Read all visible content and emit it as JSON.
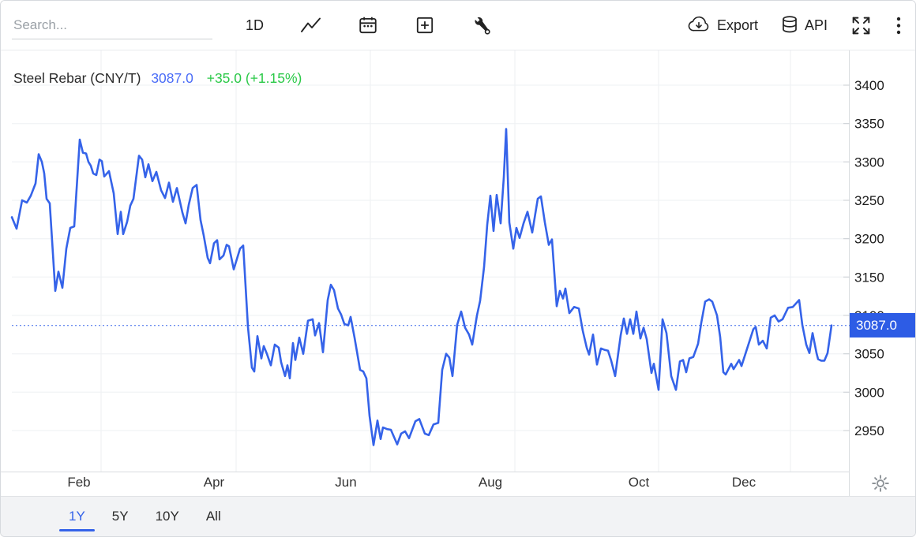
{
  "toolbar": {
    "search_placeholder": "Search...",
    "interval_label": "1D",
    "export_label": "Export",
    "api_label": "API"
  },
  "chart": {
    "title": "Steel Rebar (CNY/T)",
    "last_value": "3087.0",
    "change_text": "+35.0 (+1.15%)",
    "axis_price_label": "3087.0"
  },
  "range_tabs": {
    "items": [
      "1Y",
      "5Y",
      "10Y",
      "All"
    ],
    "active": "1Y"
  },
  "colors": {
    "line": "#3563e9",
    "accent_blue": "#4a6cf7",
    "positive_green": "#2bc948",
    "label_box": "#2d5ce5"
  },
  "chart_data": {
    "type": "line",
    "title": "Steel Rebar (CNY/T)",
    "unit": "CNY/T",
    "current_value": 3087.0,
    "change_abs": 35.0,
    "change_pct": 1.15,
    "x_axis_labels": [
      "Feb",
      "Apr",
      "Jun",
      "Aug",
      "Oct",
      "Dec"
    ],
    "y_ticks": [
      3400,
      3350,
      3300,
      3250,
      3200,
      3150,
      3100,
      3050,
      3000,
      2950
    ],
    "ylim": [
      2905,
      3445
    ],
    "legend": "none",
    "grid": true,
    "series": [
      {
        "name": "Steel Rebar",
        "points": [
          [
            14,
            3228
          ],
          [
            20,
            3213
          ],
          [
            27,
            3250
          ],
          [
            33,
            3247
          ],
          [
            38,
            3256
          ],
          [
            44,
            3272
          ],
          [
            48,
            3310
          ],
          [
            52,
            3300
          ],
          [
            55,
            3285
          ],
          [
            58,
            3252
          ],
          [
            62,
            3246
          ],
          [
            69,
            3132
          ],
          [
            73,
            3157
          ],
          [
            78,
            3136
          ],
          [
            83,
            3187
          ],
          [
            88,
            3214
          ],
          [
            93,
            3216
          ],
          [
            100,
            3329
          ],
          [
            104,
            3312
          ],
          [
            108,
            3311
          ],
          [
            111,
            3300
          ],
          [
            114,
            3295
          ],
          [
            117,
            3285
          ],
          [
            121,
            3283
          ],
          [
            125,
            3303
          ],
          [
            128,
            3301
          ],
          [
            131,
            3281
          ],
          [
            137,
            3288
          ],
          [
            143,
            3259
          ],
          [
            148,
            3206
          ],
          [
            152,
            3235
          ],
          [
            155,
            3206
          ],
          [
            160,
            3222
          ],
          [
            164,
            3243
          ],
          [
            168,
            3252
          ],
          [
            175,
            3308
          ],
          [
            179,
            3303
          ],
          [
            183,
            3280
          ],
          [
            187,
            3297
          ],
          [
            192,
            3275
          ],
          [
            197,
            3287
          ],
          [
            203,
            3263
          ],
          [
            208,
            3253
          ],
          [
            213,
            3273
          ],
          [
            218,
            3248
          ],
          [
            223,
            3266
          ],
          [
            230,
            3234
          ],
          [
            234,
            3220
          ],
          [
            238,
            3244
          ],
          [
            243,
            3266
          ],
          [
            248,
            3270
          ],
          [
            253,
            3224
          ],
          [
            257,
            3204
          ],
          [
            262,
            3175
          ],
          [
            265,
            3168
          ],
          [
            270,
            3194
          ],
          [
            274,
            3198
          ],
          [
            277,
            3173
          ],
          [
            282,
            3178
          ],
          [
            286,
            3192
          ],
          [
            289,
            3190
          ],
          [
            295,
            3160
          ],
          [
            303,
            3187
          ],
          [
            307,
            3191
          ],
          [
            313,
            3085
          ],
          [
            318,
            3032
          ],
          [
            321,
            3027
          ],
          [
            325,
            3073
          ],
          [
            330,
            3044
          ],
          [
            333,
            3060
          ],
          [
            337,
            3050
          ],
          [
            342,
            3035
          ],
          [
            347,
            3062
          ],
          [
            352,
            3058
          ],
          [
            355,
            3039
          ],
          [
            360,
            3021
          ],
          [
            363,
            3035
          ],
          [
            366,
            3018
          ],
          [
            370,
            3064
          ],
          [
            373,
            3042
          ],
          [
            378,
            3071
          ],
          [
            383,
            3050
          ],
          [
            389,
            3093
          ],
          [
            395,
            3095
          ],
          [
            398,
            3074
          ],
          [
            403,
            3090
          ],
          [
            408,
            3052
          ],
          [
            414,
            3120
          ],
          [
            418,
            3140
          ],
          [
            422,
            3133
          ],
          [
            427,
            3109
          ],
          [
            431,
            3101
          ],
          [
            435,
            3089
          ],
          [
            440,
            3087
          ],
          [
            443,
            3098
          ],
          [
            448,
            3071
          ],
          [
            455,
            3029
          ],
          [
            459,
            3027
          ],
          [
            463,
            3018
          ],
          [
            467,
            2969
          ],
          [
            472,
            2931
          ],
          [
            477,
            2963
          ],
          [
            481,
            2939
          ],
          [
            484,
            2954
          ],
          [
            489,
            2952
          ],
          [
            494,
            2951
          ],
          [
            502,
            2932
          ],
          [
            507,
            2946
          ],
          [
            512,
            2949
          ],
          [
            517,
            2940
          ],
          [
            525,
            2962
          ],
          [
            530,
            2965
          ],
          [
            537,
            2946
          ],
          [
            542,
            2944
          ],
          [
            548,
            2958
          ],
          [
            554,
            2960
          ],
          [
            559,
            3029
          ],
          [
            564,
            3050
          ],
          [
            568,
            3045
          ],
          [
            572,
            3021
          ],
          [
            578,
            3088
          ],
          [
            583,
            3105
          ],
          [
            588,
            3084
          ],
          [
            593,
            3075
          ],
          [
            597,
            3062
          ],
          [
            603,
            3100
          ],
          [
            607,
            3119
          ],
          [
            612,
            3163
          ],
          [
            616,
            3218
          ],
          [
            620,
            3256
          ],
          [
            624,
            3210
          ],
          [
            628,
            3257
          ],
          [
            633,
            3220
          ],
          [
            637,
            3280
          ],
          [
            640,
            3343
          ],
          [
            644,
            3221
          ],
          [
            649,
            3187
          ],
          [
            653,
            3214
          ],
          [
            657,
            3201
          ],
          [
            662,
            3220
          ],
          [
            667,
            3235
          ],
          [
            673,
            3208
          ],
          [
            680,
            3252
          ],
          [
            684,
            3255
          ],
          [
            689,
            3221
          ],
          [
            694,
            3192
          ],
          [
            698,
            3199
          ],
          [
            704,
            3112
          ],
          [
            708,
            3132
          ],
          [
            712,
            3122
          ],
          [
            715,
            3135
          ],
          [
            720,
            3103
          ],
          [
            726,
            3111
          ],
          [
            732,
            3109
          ],
          [
            737,
            3080
          ],
          [
            742,
            3058
          ],
          [
            745,
            3049
          ],
          [
            750,
            3075
          ],
          [
            755,
            3036
          ],
          [
            760,
            3057
          ],
          [
            765,
            3055
          ],
          [
            769,
            3054
          ],
          [
            773,
            3041
          ],
          [
            778,
            3021
          ],
          [
            785,
            3074
          ],
          [
            789,
            3096
          ],
          [
            793,
            3076
          ],
          [
            797,
            3095
          ],
          [
            801,
            3076
          ],
          [
            805,
            3105
          ],
          [
            810,
            3070
          ],
          [
            814,
            3084
          ],
          [
            818,
            3069
          ],
          [
            824,
            3025
          ],
          [
            827,
            3037
          ],
          [
            833,
            3003
          ],
          [
            838,
            3095
          ],
          [
            843,
            3077
          ],
          [
            849,
            3021
          ],
          [
            855,
            3003
          ],
          [
            860,
            3040
          ],
          [
            864,
            3042
          ],
          [
            868,
            3026
          ],
          [
            872,
            3044
          ],
          [
            877,
            3046
          ],
          [
            883,
            3063
          ],
          [
            887,
            3090
          ],
          [
            892,
            3118
          ],
          [
            897,
            3121
          ],
          [
            901,
            3118
          ],
          [
            907,
            3100
          ],
          [
            911,
            3072
          ],
          [
            915,
            3026
          ],
          [
            918,
            3023
          ],
          [
            925,
            3037
          ],
          [
            928,
            3030
          ],
          [
            935,
            3042
          ],
          [
            938,
            3034
          ],
          [
            943,
            3050
          ],
          [
            953,
            3082
          ],
          [
            956,
            3085
          ],
          [
            960,
            3062
          ],
          [
            965,
            3067
          ],
          [
            970,
            3057
          ],
          [
            975,
            3097
          ],
          [
            980,
            3100
          ],
          [
            985,
            3092
          ],
          [
            990,
            3095
          ],
          [
            997,
            3110
          ],
          [
            1003,
            3111
          ],
          [
            1011,
            3120
          ],
          [
            1015,
            3088
          ],
          [
            1020,
            3062
          ],
          [
            1024,
            3051
          ],
          [
            1028,
            3077
          ],
          [
            1033,
            3051
          ],
          [
            1035,
            3043
          ],
          [
            1039,
            3041
          ],
          [
            1043,
            3041
          ],
          [
            1047,
            3051
          ],
          [
            1052,
            3087
          ]
        ]
      }
    ]
  }
}
